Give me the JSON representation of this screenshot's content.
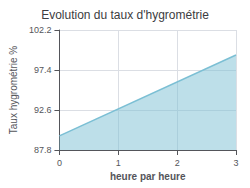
{
  "chart_data": {
    "type": "area",
    "title": "Evolution du taux d'hygrométrie",
    "xlabel": "heure par heure",
    "ylabel": "Taux hygrométrie %",
    "x": [
      0,
      3
    ],
    "values": [
      89.5,
      99.2
    ],
    "color": "#7bbfd4",
    "xlim": [
      0,
      3
    ],
    "ylim": [
      87.8,
      102.2
    ],
    "xticks": [
      0,
      1,
      2,
      3
    ],
    "yticks": [
      87.8,
      92.6,
      97.4,
      102.2
    ],
    "grid": true
  }
}
